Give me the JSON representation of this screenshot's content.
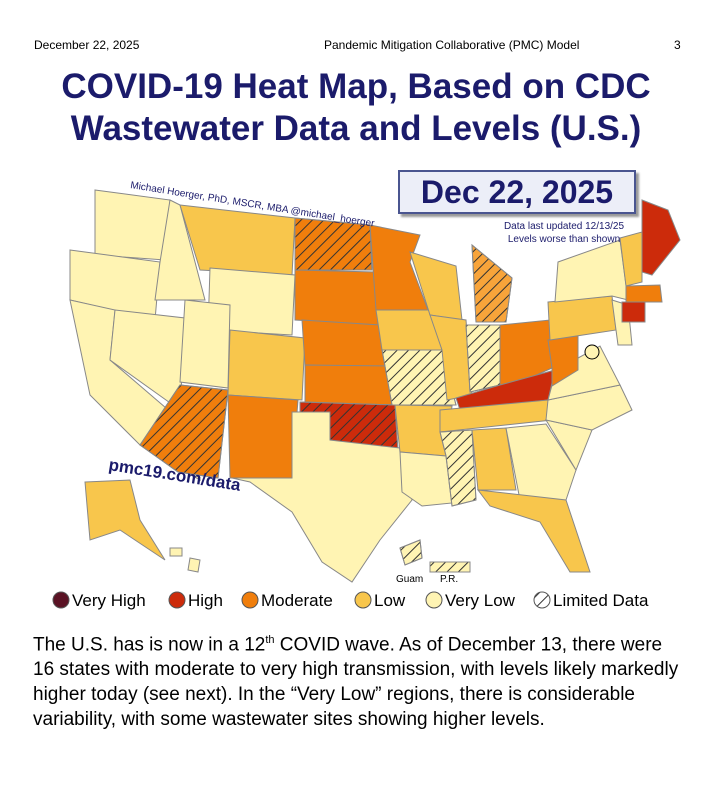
{
  "header": {
    "date": "December 22, 2025",
    "title": "Pandemic Mitigation Collaborative (PMC) Model",
    "page": "3"
  },
  "title": {
    "line1": "COVID-19 Heat Map, Based on CDC",
    "line2": "Wastewater Data and Levels (U.S.)"
  },
  "map": {
    "date_badge": "Dec 22, 2025",
    "note1": "Data last updated 12/13/25",
    "note2": "Levels worse than shown",
    "credit": "Michael Hoerger, PhD, MSCR, MBA  @michael_hoerger",
    "site": "pmc19.com/data",
    "guam": "Guam",
    "pr": "P.R."
  },
  "legend": [
    "Very High",
    "High",
    "Moderate",
    "Low",
    "Very Low",
    "Limited Data"
  ],
  "paragraph": {
    "part1": "The U.S. has is now in a 12",
    "sup": "th",
    "part2": " COVID wave. As of December 13, there were 16 states with moderate to very high transmission, with levels likely markedly higher today (see next). In the “Very Low” regions, there is considerable variability, with some wastewater sites showing higher levels."
  }
}
